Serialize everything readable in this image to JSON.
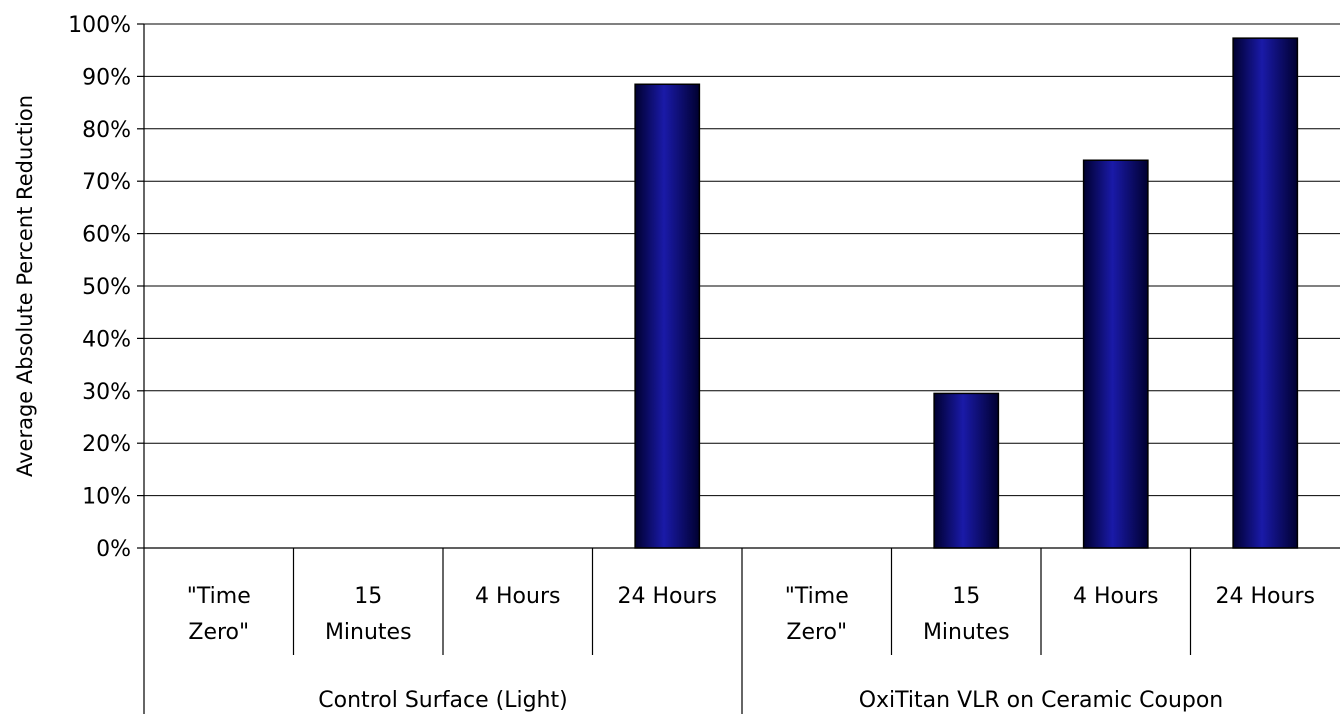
{
  "chart_data": {
    "type": "bar",
    "ylabel": "Average Absolute Percent Reduction",
    "ylim": [
      0,
      100
    ],
    "yticks": [
      "0%",
      "10%",
      "20%",
      "30%",
      "40%",
      "50%",
      "60%",
      "70%",
      "80%",
      "90%",
      "100%"
    ],
    "grid": true,
    "groups": [
      {
        "label": "Control Surface (Light)",
        "categories": [
          {
            "lines": [
              "\"Time",
              "Zero\""
            ],
            "value": 0
          },
          {
            "lines": [
              "15",
              "Minutes"
            ],
            "value": 0
          },
          {
            "lines": [
              "4 Hours"
            ],
            "value": 0
          },
          {
            "lines": [
              "24 Hours"
            ],
            "value": 88.5
          }
        ]
      },
      {
        "label": "OxiTitan VLR on Ceramic Coupon",
        "categories": [
          {
            "lines": [
              "\"Time",
              "Zero\""
            ],
            "value": 0
          },
          {
            "lines": [
              "15",
              "Minutes"
            ],
            "value": 29.5
          },
          {
            "lines": [
              "4 Hours"
            ],
            "value": 74
          },
          {
            "lines": [
              "24 Hours"
            ],
            "value": 97.3
          }
        ]
      }
    ],
    "colors": {
      "bar": "#000080",
      "bar_highlight": "#1a1aa8",
      "bar_shadow": "#000030"
    }
  }
}
